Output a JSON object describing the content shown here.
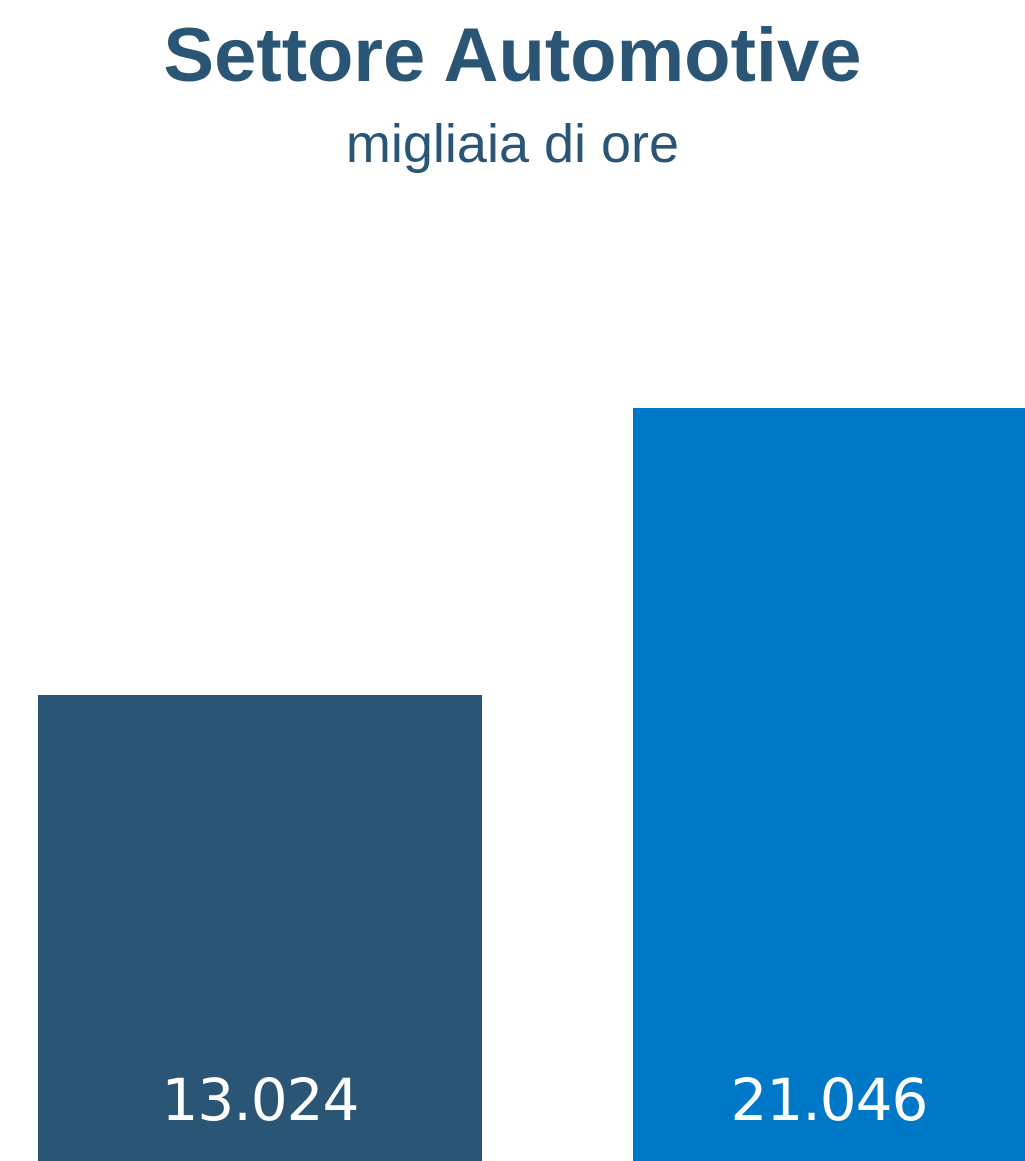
{
  "chart_data": {
    "type": "bar",
    "title": "Settore Automotive",
    "subtitle": "migliaia di ore",
    "categories": [
      "",
      ""
    ],
    "values": [
      13024,
      21046
    ],
    "value_labels": [
      "13.024",
      "21.046"
    ],
    "colors": [
      "#2a5574",
      "#0078c8"
    ],
    "ylim": [
      0,
      26300
    ],
    "grid": false,
    "legend": "none",
    "xlabel": "",
    "ylabel": ""
  }
}
